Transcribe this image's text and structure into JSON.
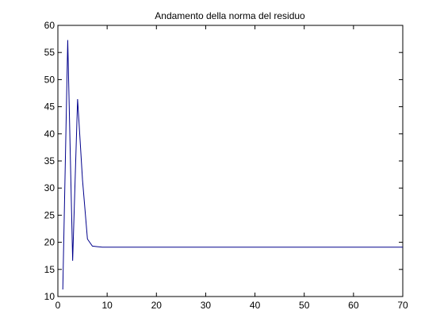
{
  "chart_data": {
    "type": "line",
    "title": "Andamento della norma del residuo",
    "xlabel": "",
    "ylabel": "",
    "xlim": [
      0,
      70
    ],
    "ylim": [
      10,
      60
    ],
    "xticks": [
      0,
      10,
      20,
      30,
      40,
      50,
      60,
      70
    ],
    "yticks": [
      10,
      15,
      20,
      25,
      30,
      35,
      40,
      45,
      50,
      55,
      60
    ],
    "grid": false,
    "series": [
      {
        "name": "",
        "color": "#00008b",
        "x": [
          1,
          2,
          3,
          4,
          5,
          6,
          7,
          8,
          9,
          10,
          15,
          20,
          25,
          30,
          35,
          40,
          45,
          50,
          55,
          60,
          65,
          70
        ],
        "y": [
          11.3,
          57.3,
          16.6,
          46.4,
          31.5,
          20.6,
          19.3,
          19.2,
          19.1,
          19.1,
          19.1,
          19.1,
          19.1,
          19.1,
          19.1,
          19.1,
          19.1,
          19.1,
          19.1,
          19.1,
          19.1,
          19.1
        ]
      }
    ]
  }
}
